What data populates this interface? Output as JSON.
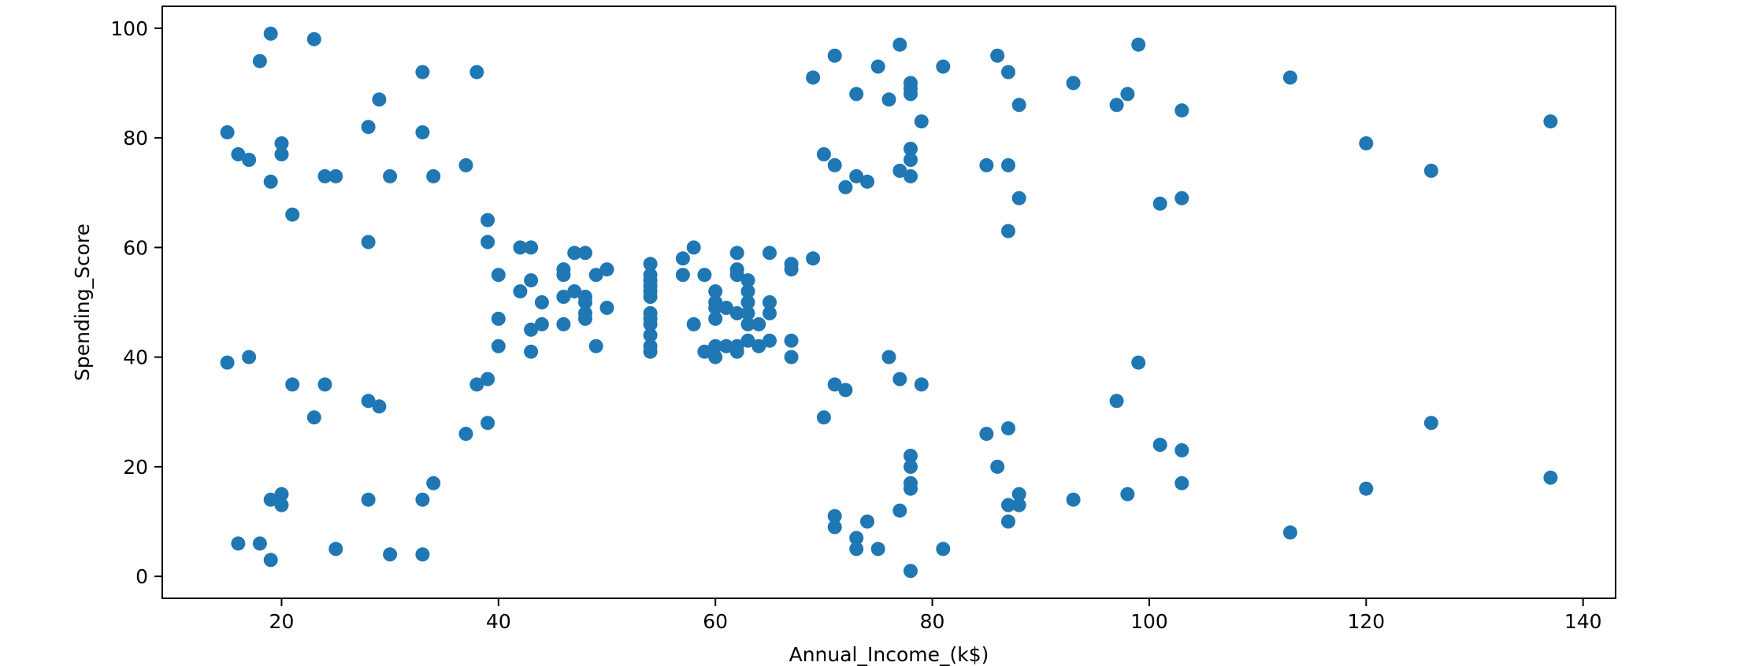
{
  "chart_data": {
    "type": "scatter",
    "title": "",
    "xlabel": "Annual_Income_(k$)",
    "ylabel": "Spending_Score",
    "xlim": [
      9,
      143
    ],
    "ylim": [
      -4,
      104
    ],
    "xticks": [
      20,
      40,
      60,
      80,
      100,
      120,
      140
    ],
    "yticks": [
      0,
      20,
      40,
      60,
      80,
      100
    ],
    "grid": false,
    "legend": "none",
    "point_color": "#1f77b4",
    "series": [
      {
        "points": [
          [
            15,
            81
          ],
          [
            15,
            39
          ],
          [
            16,
            77
          ],
          [
            16,
            6
          ],
          [
            17,
            76
          ],
          [
            17,
            40
          ],
          [
            18,
            94
          ],
          [
            18,
            6
          ],
          [
            19,
            99
          ],
          [
            19,
            72
          ],
          [
            19,
            14
          ],
          [
            19,
            3
          ],
          [
            20,
            79
          ],
          [
            20,
            77
          ],
          [
            20,
            15
          ],
          [
            20,
            13
          ],
          [
            21,
            66
          ],
          [
            21,
            35
          ],
          [
            23,
            98
          ],
          [
            23,
            29
          ],
          [
            24,
            73
          ],
          [
            24,
            35
          ],
          [
            25,
            73
          ],
          [
            25,
            5
          ],
          [
            28,
            82
          ],
          [
            28,
            61
          ],
          [
            28,
            32
          ],
          [
            28,
            14
          ],
          [
            29,
            87
          ],
          [
            29,
            31
          ],
          [
            30,
            73
          ],
          [
            30,
            4
          ],
          [
            33,
            92
          ],
          [
            33,
            81
          ],
          [
            33,
            14
          ],
          [
            33,
            4
          ],
          [
            34,
            73
          ],
          [
            34,
            17
          ],
          [
            37,
            75
          ],
          [
            37,
            26
          ],
          [
            38,
            92
          ],
          [
            38,
            35
          ],
          [
            39,
            65
          ],
          [
            39,
            61
          ],
          [
            39,
            36
          ],
          [
            39,
            28
          ],
          [
            40,
            55
          ],
          [
            40,
            47
          ],
          [
            40,
            42
          ],
          [
            42,
            60
          ],
          [
            42,
            52
          ],
          [
            43,
            60
          ],
          [
            43,
            54
          ],
          [
            43,
            45
          ],
          [
            43,
            41
          ],
          [
            44,
            50
          ],
          [
            44,
            46
          ],
          [
            46,
            56
          ],
          [
            46,
            55
          ],
          [
            46,
            51
          ],
          [
            46,
            46
          ],
          [
            47,
            59
          ],
          [
            47,
            52
          ],
          [
            48,
            59
          ],
          [
            48,
            51
          ],
          [
            48,
            50
          ],
          [
            48,
            48
          ],
          [
            48,
            47
          ],
          [
            49,
            55
          ],
          [
            49,
            42
          ],
          [
            50,
            56
          ],
          [
            50,
            49
          ],
          [
            54,
            57
          ],
          [
            54,
            55
          ],
          [
            54,
            54
          ],
          [
            54,
            53
          ],
          [
            54,
            52
          ],
          [
            54,
            51
          ],
          [
            54,
            48
          ],
          [
            54,
            47
          ],
          [
            54,
            46
          ],
          [
            54,
            44
          ],
          [
            54,
            42
          ],
          [
            54,
            41
          ],
          [
            57,
            58
          ],
          [
            57,
            55
          ],
          [
            58,
            60
          ],
          [
            58,
            46
          ],
          [
            59,
            55
          ],
          [
            59,
            41
          ],
          [
            60,
            52
          ],
          [
            60,
            50
          ],
          [
            60,
            49
          ],
          [
            60,
            47
          ],
          [
            60,
            42
          ],
          [
            60,
            40
          ],
          [
            61,
            49
          ],
          [
            61,
            42
          ],
          [
            62,
            59
          ],
          [
            62,
            56
          ],
          [
            62,
            55
          ],
          [
            62,
            48
          ],
          [
            62,
            42
          ],
          [
            62,
            41
          ],
          [
            63,
            54
          ],
          [
            63,
            52
          ],
          [
            63,
            50
          ],
          [
            63,
            48
          ],
          [
            63,
            46
          ],
          [
            63,
            43
          ],
          [
            64,
            46
          ],
          [
            64,
            42
          ],
          [
            65,
            59
          ],
          [
            65,
            50
          ],
          [
            65,
            48
          ],
          [
            65,
            43
          ],
          [
            67,
            57
          ],
          [
            67,
            56
          ],
          [
            67,
            43
          ],
          [
            67,
            40
          ],
          [
            69,
            91
          ],
          [
            69,
            58
          ],
          [
            70,
            77
          ],
          [
            70,
            29
          ],
          [
            71,
            95
          ],
          [
            71,
            75
          ],
          [
            71,
            35
          ],
          [
            71,
            11
          ],
          [
            71,
            9
          ],
          [
            72,
            71
          ],
          [
            72,
            34
          ],
          [
            73,
            88
          ],
          [
            73,
            73
          ],
          [
            73,
            7
          ],
          [
            73,
            5
          ],
          [
            74,
            72
          ],
          [
            74,
            10
          ],
          [
            75,
            93
          ],
          [
            75,
            5
          ],
          [
            76,
            87
          ],
          [
            76,
            40
          ],
          [
            77,
            97
          ],
          [
            77,
            74
          ],
          [
            77,
            36
          ],
          [
            77,
            12
          ],
          [
            78,
            90
          ],
          [
            78,
            89
          ],
          [
            78,
            88
          ],
          [
            78,
            78
          ],
          [
            78,
            76
          ],
          [
            78,
            73
          ],
          [
            78,
            22
          ],
          [
            78,
            20
          ],
          [
            78,
            17
          ],
          [
            78,
            16
          ],
          [
            78,
            1
          ],
          [
            79,
            83
          ],
          [
            79,
            35
          ],
          [
            81,
            93
          ],
          [
            81,
            5
          ],
          [
            85,
            75
          ],
          [
            85,
            26
          ],
          [
            86,
            95
          ],
          [
            86,
            20
          ],
          [
            87,
            92
          ],
          [
            87,
            75
          ],
          [
            87,
            63
          ],
          [
            87,
            27
          ],
          [
            87,
            13
          ],
          [
            87,
            10
          ],
          [
            88,
            86
          ],
          [
            88,
            69
          ],
          [
            88,
            15
          ],
          [
            88,
            13
          ],
          [
            93,
            90
          ],
          [
            93,
            14
          ],
          [
            97,
            86
          ],
          [
            97,
            32
          ],
          [
            98,
            88
          ],
          [
            98,
            15
          ],
          [
            99,
            97
          ],
          [
            99,
            39
          ],
          [
            101,
            68
          ],
          [
            101,
            24
          ],
          [
            103,
            85
          ],
          [
            103,
            69
          ],
          [
            103,
            23
          ],
          [
            103,
            17
          ],
          [
            113,
            91
          ],
          [
            113,
            8
          ],
          [
            120,
            79
          ],
          [
            120,
            16
          ],
          [
            126,
            74
          ],
          [
            126,
            28
          ],
          [
            137,
            83
          ],
          [
            137,
            18
          ]
        ]
      }
    ]
  }
}
